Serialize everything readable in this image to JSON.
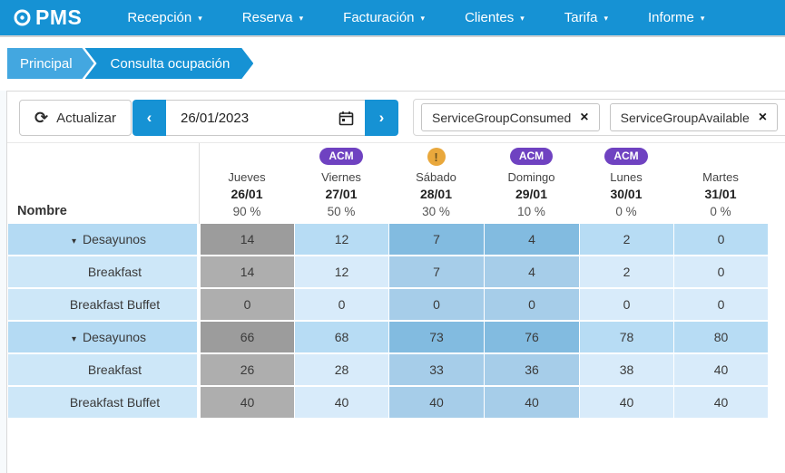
{
  "navbar": {
    "brand": "PMS",
    "items": [
      {
        "label": "Recepción"
      },
      {
        "label": "Reserva"
      },
      {
        "label": "Facturación"
      },
      {
        "label": "Clientes"
      },
      {
        "label": "Tarifa"
      },
      {
        "label": "Informe"
      }
    ]
  },
  "breadcrumb": {
    "items": [
      "Principal",
      "Consulta ocupación"
    ]
  },
  "toolbar": {
    "refresh_label": "Actualizar",
    "date_value": "26/01/2023",
    "filters": [
      {
        "label": "ServiceGroupConsumed"
      },
      {
        "label": "ServiceGroupAvailable"
      }
    ]
  },
  "table": {
    "name_header": "Nombre",
    "columns": [
      {
        "day": "Jueves",
        "date": "26/01",
        "pct": "90 %",
        "badge": null,
        "tone": "gray"
      },
      {
        "day": "Viernes",
        "date": "27/01",
        "pct": "50 %",
        "badge": {
          "type": "acm",
          "label": "ACM"
        },
        "tone": "plain"
      },
      {
        "day": "Sábado",
        "date": "28/01",
        "pct": "30 %",
        "badge": {
          "type": "warn",
          "label": "!"
        },
        "tone": "weekend"
      },
      {
        "day": "Domingo",
        "date": "29/01",
        "pct": "10 %",
        "badge": {
          "type": "acm",
          "label": "ACM"
        },
        "tone": "weekend"
      },
      {
        "day": "Lunes",
        "date": "30/01",
        "pct": "0 %",
        "badge": {
          "type": "acm",
          "label": "ACM"
        },
        "tone": "plain"
      },
      {
        "day": "Martes",
        "date": "31/01",
        "pct": "0 %",
        "badge": null,
        "tone": "plain"
      }
    ],
    "rows": [
      {
        "name": "Desayunos",
        "group": true,
        "values": [
          14,
          12,
          7,
          4,
          2,
          0
        ]
      },
      {
        "name": "Breakfast",
        "group": false,
        "values": [
          14,
          12,
          7,
          4,
          2,
          0
        ]
      },
      {
        "name": "Breakfast Buffet",
        "group": false,
        "values": [
          0,
          0,
          0,
          0,
          0,
          0
        ]
      },
      {
        "name": "Desayunos",
        "group": true,
        "values": [
          66,
          68,
          73,
          76,
          78,
          80
        ]
      },
      {
        "name": "Breakfast",
        "group": false,
        "values": [
          26,
          28,
          33,
          36,
          38,
          40
        ]
      },
      {
        "name": "Breakfast Buffet",
        "group": false,
        "values": [
          40,
          40,
          40,
          40,
          40,
          40
        ]
      }
    ]
  },
  "colors": {
    "accent_blue": "#1692d4",
    "breadcrumb_light_blue": "#43a7e0",
    "badge_purple": "#6f42c1",
    "badge_orange": "#e9a83c",
    "selected_col_gray": "#9c9c9c",
    "weekend_blue": "#82bbe0",
    "row_blue": "#d8ebfa"
  }
}
